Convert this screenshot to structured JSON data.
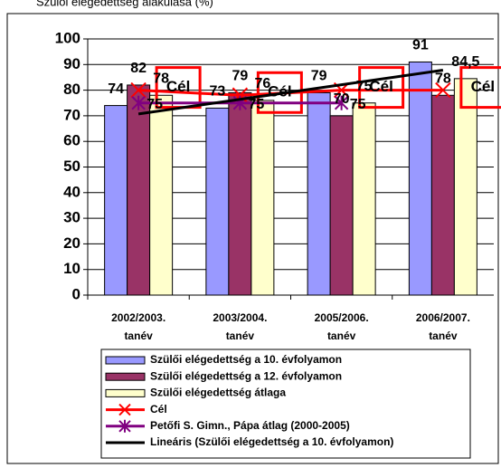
{
  "chart_data": {
    "type": "bar",
    "title": "Szülői elégedettség alakulása (%)",
    "categories": [
      [
        "2002/2003.",
        "tanév"
      ],
      [
        "2003/2004.",
        "tanév"
      ],
      [
        "2005/2006.",
        "tanév"
      ],
      [
        "2006/2007.",
        "tanév"
      ]
    ],
    "ylim": [
      0,
      100
    ],
    "yticks": [
      0,
      10,
      20,
      30,
      40,
      50,
      60,
      70,
      80,
      90,
      100
    ],
    "grid": true,
    "legend": "bottom",
    "series": [
      {
        "name": "Szülői elégedettség a 10. évfolyamon",
        "type": "bar",
        "color": "#9999ff",
        "values": [
          74,
          73,
          79,
          91
        ]
      },
      {
        "name": "Szülői elégedettség a 12. évfolyamon",
        "type": "bar",
        "color": "#993366",
        "values": [
          82,
          79,
          70,
          78
        ]
      },
      {
        "name": "Szülői elégedettség átlaga",
        "type": "bar",
        "color": "#ffffcc",
        "values": [
          78,
          76,
          75,
          84.5
        ],
        "value_labels": [
          "78",
          "76",
          "75",
          "84,5"
        ]
      },
      {
        "name": "Cél",
        "type": "line",
        "color": "#ff0000",
        "marker": "x",
        "values": [
          80,
          78,
          80,
          80
        ]
      },
      {
        "name": "Petőfi S. Gimn., Pápa átlag (2000-2005)",
        "type": "line",
        "color": "#800080",
        "marker": "star",
        "values": [
          75,
          75,
          75,
          null
        ]
      },
      {
        "name": "Lineáris (Szülői elégedettség a 10. évfolyamon)",
        "type": "line",
        "color": "#000000",
        "values": [
          70.7,
          76.4,
          82.1,
          87.8
        ]
      }
    ]
  }
}
